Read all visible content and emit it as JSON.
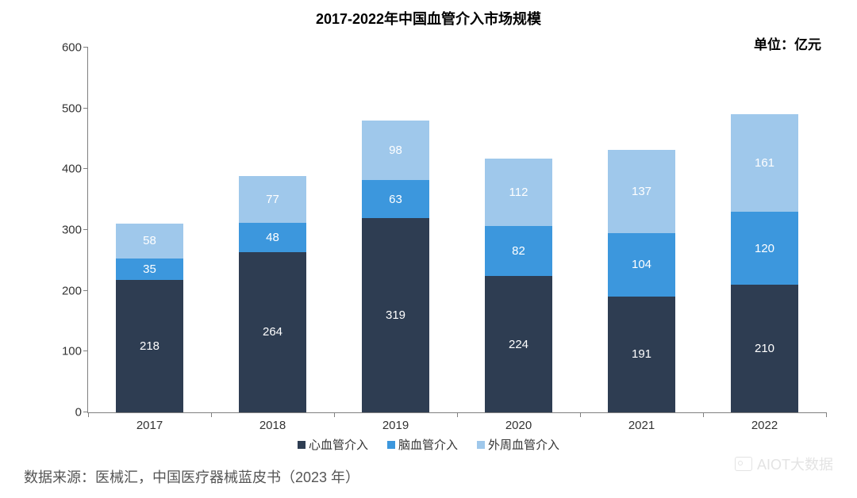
{
  "chart": {
    "type": "stacked-bar",
    "title": "2017-2022年中国血管介入市场规模",
    "title_fontsize": 18,
    "unit_label": "单位：亿元",
    "unit_fontsize": 17,
    "background_color": "#ffffff",
    "axis_color": "#808080",
    "ylim": [
      0,
      600
    ],
    "ytick_step": 100,
    "yticks": [
      0,
      100,
      200,
      300,
      400,
      500,
      600
    ],
    "categories": [
      "2017",
      "2018",
      "2019",
      "2020",
      "2021",
      "2022"
    ],
    "series": [
      {
        "name": "心血管介入",
        "color": "#2e3d52",
        "values": [
          218,
          264,
          319,
          224,
          191,
          210
        ]
      },
      {
        "name": "脑血管介入",
        "color": "#3c97dd",
        "values": [
          35,
          48,
          63,
          82,
          104,
          120
        ]
      },
      {
        "name": "外周血管介入",
        "color": "#9fc8eb",
        "values": [
          58,
          77,
          98,
          112,
          137,
          161
        ]
      }
    ],
    "bar_width_ratio": 0.55,
    "label_fontsize": 15,
    "value_label_color": "#ffffff",
    "tick_label_color": "#333333"
  },
  "legend": {
    "items": [
      {
        "label": "心血管介入",
        "color": "#2e3d52"
      },
      {
        "label": "脑血管介入",
        "color": "#3c97dd"
      },
      {
        "label": "外周血管介入",
        "color": "#9fc8eb"
      }
    ]
  },
  "source_text": "数据来源：医械汇，中国医疗器械蓝皮书（2023 年）",
  "watermark_text": "AIOT大数据"
}
